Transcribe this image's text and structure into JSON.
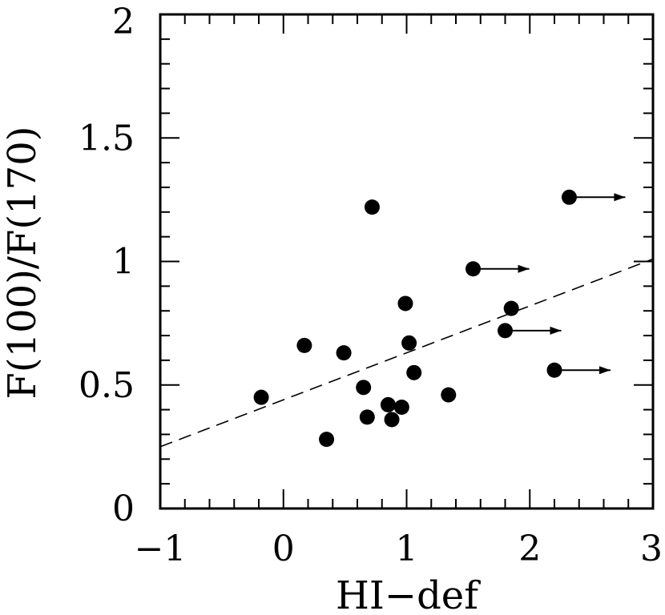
{
  "chart_data": {
    "type": "scatter",
    "xlabel": "HI−def",
    "ylabel": "F(100)/F(170)",
    "xlim": [
      -1,
      3
    ],
    "ylim": [
      0,
      2
    ],
    "x_ticks": [
      {
        "value": -1,
        "label": "−1"
      },
      {
        "value": 0,
        "label": "0"
      },
      {
        "value": 1,
        "label": "1"
      },
      {
        "value": 2,
        "label": "2"
      },
      {
        "value": 3,
        "label": "3"
      }
    ],
    "y_ticks": [
      {
        "value": 0,
        "label": "0"
      },
      {
        "value": 0.5,
        "label": "0.5"
      },
      {
        "value": 1,
        "label": "1"
      },
      {
        "value": 1.5,
        "label": "1.5"
      },
      {
        "value": 2,
        "label": "2"
      }
    ],
    "x_minor_step": 0.2,
    "y_minor_step": 0.1,
    "grid": false,
    "points": [
      {
        "x": -0.18,
        "y": 0.45
      },
      {
        "x": 0.17,
        "y": 0.66
      },
      {
        "x": 0.35,
        "y": 0.28
      },
      {
        "x": 0.49,
        "y": 0.63
      },
      {
        "x": 0.65,
        "y": 0.49
      },
      {
        "x": 0.68,
        "y": 0.37
      },
      {
        "x": 0.72,
        "y": 1.22
      },
      {
        "x": 0.85,
        "y": 0.42
      },
      {
        "x": 0.88,
        "y": 0.36
      },
      {
        "x": 0.96,
        "y": 0.41
      },
      {
        "x": 0.99,
        "y": 0.83
      },
      {
        "x": 1.02,
        "y": 0.67
      },
      {
        "x": 1.06,
        "y": 0.55
      },
      {
        "x": 1.34,
        "y": 0.46
      },
      {
        "x": 1.54,
        "y": 0.97,
        "lower_limit": true
      },
      {
        "x": 1.8,
        "y": 0.72,
        "lower_limit": true
      },
      {
        "x": 1.85,
        "y": 0.81
      },
      {
        "x": 2.2,
        "y": 0.56,
        "lower_limit": true
      },
      {
        "x": 2.32,
        "y": 1.26,
        "lower_limit": true
      }
    ],
    "fit_line": {
      "style": "dashed",
      "x": [
        -1,
        3
      ],
      "y": [
        0.25,
        1.01
      ]
    }
  }
}
